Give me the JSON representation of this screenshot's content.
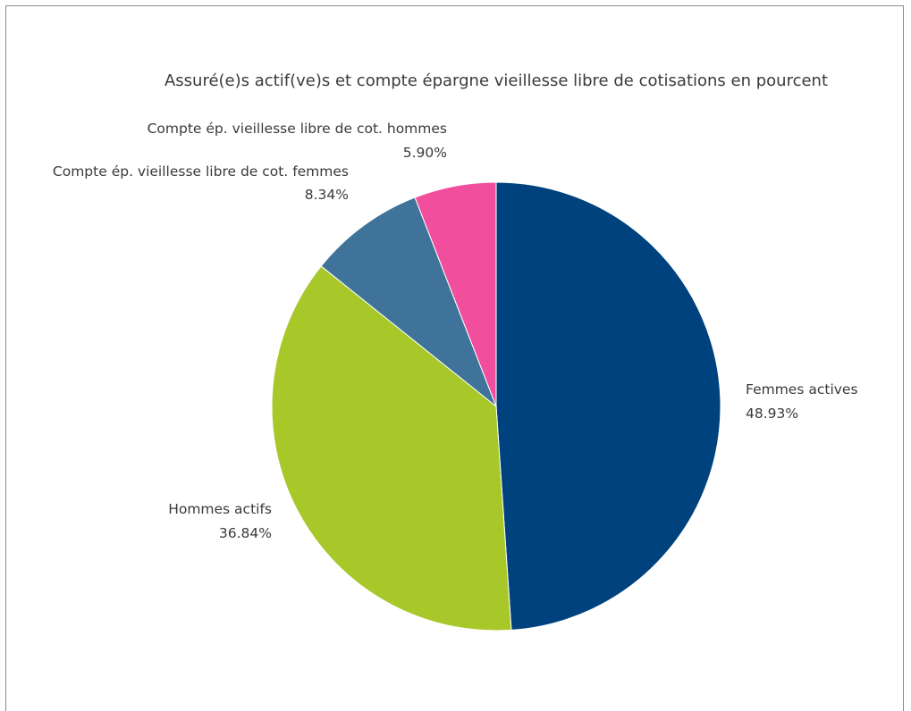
{
  "chart_data": {
    "type": "pie",
    "title": "Assuré(e)s actif(ve)s et compte épargne vieillesse libre de cotisations en pourcent",
    "start_angle_deg": 0,
    "direction": "clockwise",
    "slices": [
      {
        "label": "Femmes actives",
        "value": 48.93,
        "value_label": "48.93%",
        "color": "#00427D"
      },
      {
        "label": "Hommes actifs",
        "value": 36.84,
        "value_label": "36.84%",
        "color": "#A8C82A"
      },
      {
        "label": "Compte ép. vieillesse libre de cot. femmes",
        "value": 8.34,
        "value_label": "8.34%",
        "color": "#3F7399"
      },
      {
        "label": "Compte ép. vieillesse libre de cot. hommes",
        "value": 5.9,
        "value_label": "5.90%",
        "color": "#F24E9E"
      }
    ],
    "legend": "none"
  }
}
